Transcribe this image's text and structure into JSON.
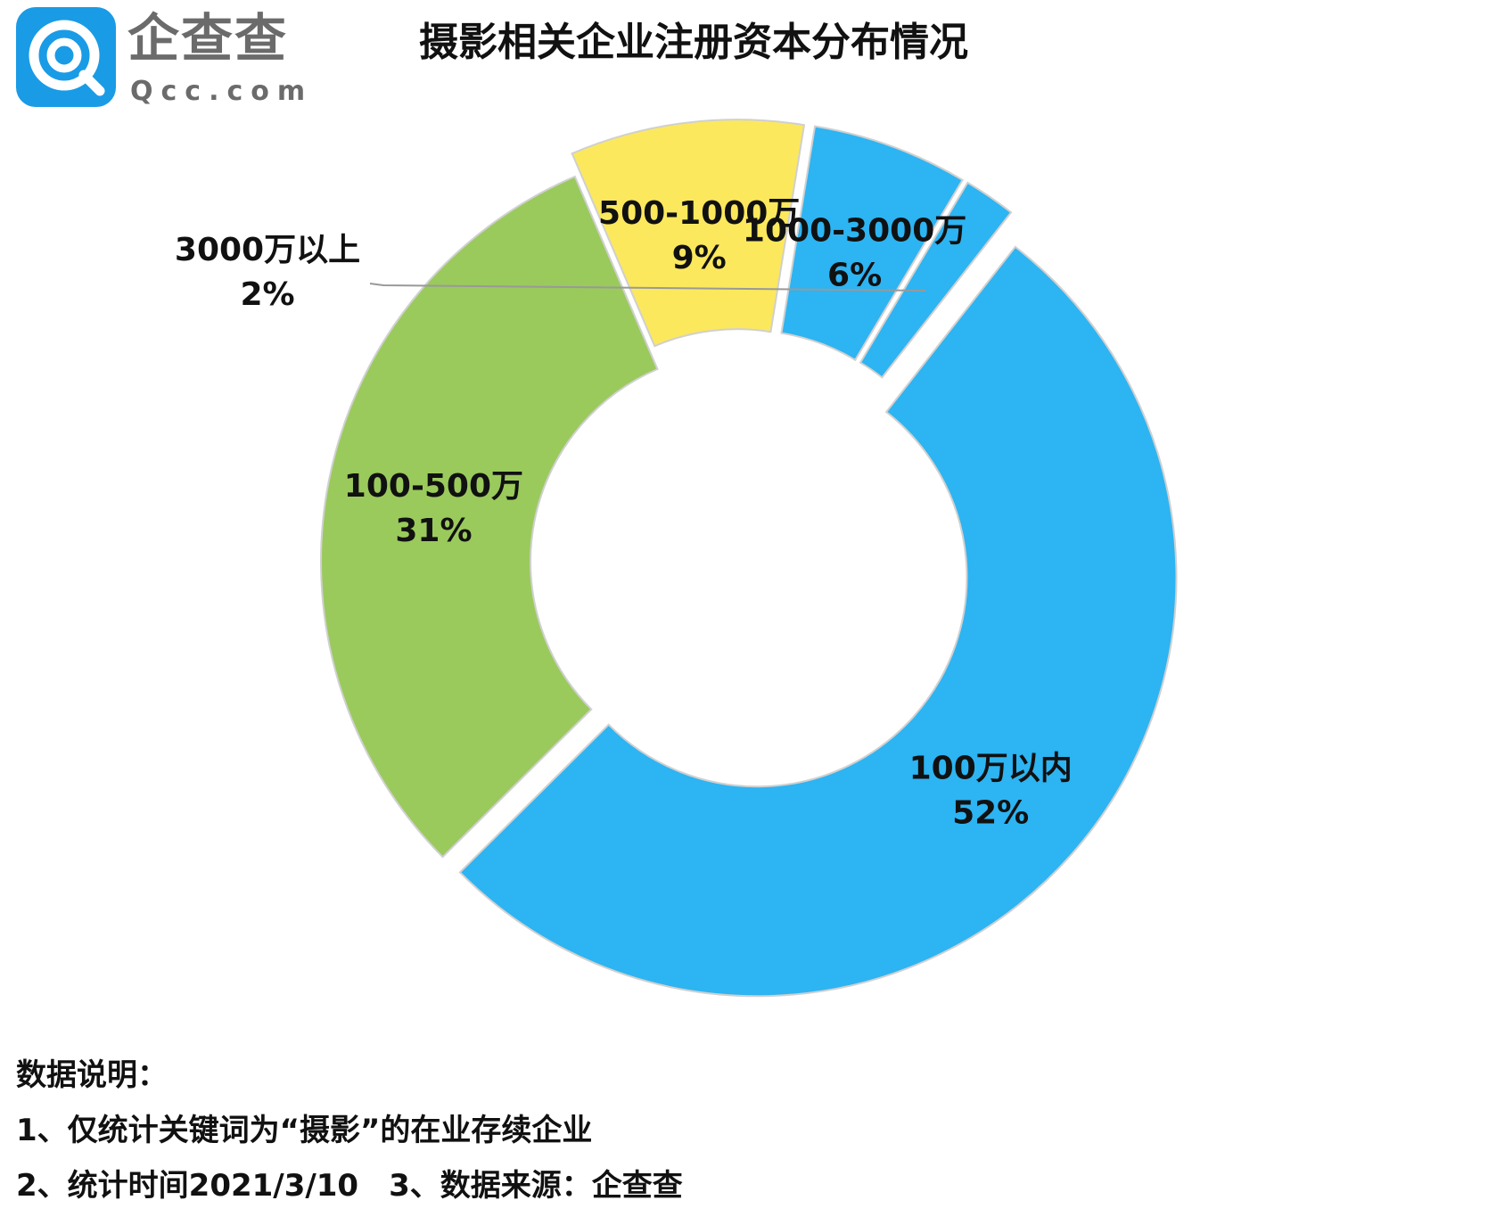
{
  "brand": {
    "name_cn": "企查查",
    "name_en": "Qcc.com",
    "badge_color": "#1a9be6"
  },
  "title": "摄影相关企业注册资本分布情况",
  "chart_data": {
    "type": "pie",
    "variant": "donut",
    "title": "摄影相关企业注册资本分布情况",
    "slices": [
      {
        "label": "100万以内",
        "percent_label": "52%",
        "value": 52,
        "color": "#2db4f2",
        "exploded": true
      },
      {
        "label": "100-500万",
        "percent_label": "31%",
        "value": 31,
        "color": "#9aca5c",
        "exploded": false
      },
      {
        "label": "500-1000万",
        "percent_label": "9%",
        "value": 9,
        "color": "#fce85c",
        "exploded": true
      },
      {
        "label": "1000-3000万",
        "percent_label": "6%",
        "value": 6,
        "color": "#2db4f2",
        "exploded": true
      },
      {
        "label": "3000万以上",
        "percent_label": "2%",
        "value": 2,
        "color": "#2db4f2",
        "exploded": true
      }
    ]
  },
  "notes": {
    "heading": "数据说明：",
    "line1": "1、仅统计关键词为“摄影”的在业存续企业",
    "line2": "2、统计时间2021/3/10　3、数据来源：企查查"
  }
}
